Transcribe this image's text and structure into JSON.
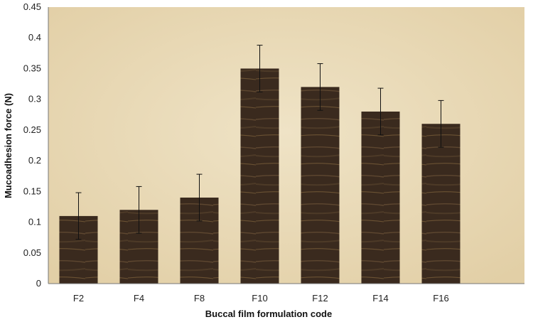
{
  "chart_data": {
    "type": "bar",
    "title": "",
    "xlabel": "Buccal film formulation code",
    "ylabel": "Mucoadhesion force (N)",
    "categories": [
      "F2",
      "F4",
      "F8",
      "F10",
      "F12",
      "F14",
      "F16"
    ],
    "values": [
      0.11,
      0.12,
      0.14,
      0.35,
      0.32,
      0.28,
      0.26
    ],
    "error": [
      0.038,
      0.038,
      0.038,
      0.038,
      0.038,
      0.038,
      0.038
    ],
    "ylim": [
      0,
      0.45
    ],
    "yticks": [
      "0",
      "0.05",
      "0.1",
      "0.15",
      "0.2",
      "0.25",
      "0.3",
      "0.35",
      "0.4",
      "0.45"
    ],
    "grid": false,
    "legend": "none"
  },
  "colors": {
    "plot_bg": "#e8d9b6",
    "bar_fill": "#3a2a1e",
    "bar_stripe": "#6b5233",
    "error_bar": "#111111"
  }
}
